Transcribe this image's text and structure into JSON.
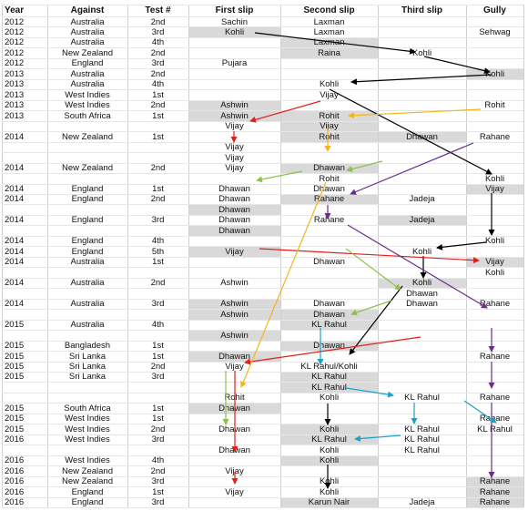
{
  "table": {
    "columns": [
      "Year",
      "Against",
      "Test #",
      "First slip",
      "Second slip",
      "Third slip",
      "Gully"
    ],
    "rows": [
      [
        "2012",
        "Australia",
        "2nd",
        "Sachin",
        "Laxman",
        null,
        null
      ],
      [
        "2012",
        "Australia",
        "3rd",
        "Kohli",
        "Laxman",
        null,
        "Sehwag"
      ],
      [
        "2012",
        "Australia",
        "4th",
        null,
        "Laxman",
        null,
        null
      ],
      [
        "2012",
        "New Zealand",
        "2nd",
        null,
        "Raina",
        "Kohli",
        null
      ],
      [
        "2012",
        "England",
        "3rd",
        "Pujara",
        null,
        null,
        null
      ],
      [
        "2013",
        "Australia",
        "2nd",
        null,
        null,
        null,
        "Kohli"
      ],
      [
        "2013",
        "Australia",
        "4th",
        null,
        "Kohli",
        null,
        null
      ],
      [
        "2013",
        "West Indies",
        "1st",
        null,
        "Vijay",
        null,
        null
      ],
      [
        "2013",
        "West Indies",
        "2nd",
        "Ashwin",
        null,
        null,
        "Rohit"
      ],
      [
        "2013",
        "South Africa",
        "1st",
        "Ashwin",
        "Rohit",
        null,
        null
      ],
      [
        null,
        null,
        null,
        "Vijay",
        "Vijay",
        null,
        null
      ],
      [
        "2014",
        "New Zealand",
        "1st",
        null,
        "Rohit",
        "Dhawan",
        "Rahane"
      ],
      [
        null,
        null,
        null,
        "Vijay",
        null,
        null,
        null
      ],
      [
        null,
        null,
        null,
        "Vijay",
        null,
        null,
        null
      ],
      [
        "2014",
        "New Zealand",
        "2nd",
        "Vijay",
        "Dhawan",
        null,
        null
      ],
      [
        null,
        null,
        null,
        null,
        "Rohit",
        null,
        "Kohli"
      ],
      [
        "2014",
        "England",
        "1st",
        "Dhawan",
        "Dhawan",
        null,
        "Vijay"
      ],
      [
        "2014",
        "England",
        "2nd",
        "Dhawan",
        "Rahane",
        "Jadeja",
        null
      ],
      [
        null,
        null,
        null,
        "Dhawan",
        null,
        null,
        null
      ],
      [
        "2014",
        "England",
        "3rd",
        "Dhawan",
        "Rahane",
        "Jadeja",
        null
      ],
      [
        null,
        null,
        null,
        "Dhawan",
        null,
        null,
        null
      ],
      [
        "2014",
        "England",
        "4th",
        null,
        null,
        null,
        "Kohli"
      ],
      [
        "2014",
        "England",
        "5th",
        "Vijay",
        null,
        "Kohli",
        null
      ],
      [
        "2014",
        "Australia",
        "1st",
        null,
        "Dhawan",
        null,
        "Vijay"
      ],
      [
        null,
        null,
        null,
        null,
        null,
        null,
        "Kohli"
      ],
      [
        "2014",
        "Australia",
        "2nd",
        "Ashwin",
        null,
        "Kohli",
        null
      ],
      [
        null,
        null,
        null,
        null,
        null,
        "Dhawan",
        null
      ],
      [
        "2014",
        "Australia",
        "3rd",
        "Ashwin",
        "Dhawan",
        "Dhawan",
        "Rahane"
      ],
      [
        null,
        null,
        null,
        "Ashwin",
        "Dhawan",
        null,
        null
      ],
      [
        "2015",
        "Australia",
        "4th",
        null,
        "KL Rahul",
        null,
        null
      ],
      [
        null,
        null,
        null,
        "Ashwin",
        null,
        null,
        null
      ],
      [
        "2015",
        "Bangladesh",
        "1st",
        null,
        "Dhawan",
        null,
        null
      ],
      [
        "2015",
        "Sri Lanka",
        "1st",
        "Dhawan",
        null,
        null,
        "Rahane"
      ],
      [
        "2015",
        "Sri Lanka",
        "2nd",
        "Vijay",
        "KL Rahul/Kohli",
        null,
        null
      ],
      [
        "2015",
        "Sri Lanka",
        "3rd",
        null,
        "KL Rahul",
        null,
        null
      ],
      [
        null,
        null,
        null,
        null,
        "KL Rahul",
        null,
        null
      ],
      [
        null,
        null,
        null,
        "Rohit",
        "Kohli",
        "KL Rahul",
        "Rahane"
      ],
      [
        "2015",
        "South Africa",
        "1st",
        "Dhawan",
        null,
        null,
        null
      ],
      [
        "2015",
        "West Indies",
        "1st",
        null,
        null,
        null,
        "Rahane"
      ],
      [
        "2015",
        "West Indies",
        "2nd",
        "Dhawan",
        "Kohli",
        "KL Rahul",
        "KL Rahul"
      ],
      [
        "2016",
        "West Indies",
        "3rd",
        null,
        "KL Rahul",
        "KL Rahul",
        null
      ],
      [
        null,
        null,
        null,
        "Dhawan",
        "Kohli",
        "KL Rahul",
        null
      ],
      [
        "2016",
        "West Indies",
        "4th",
        null,
        "Kohli",
        null,
        null
      ],
      [
        "2016",
        "New Zealand",
        "2nd",
        "Vijay",
        null,
        null,
        null
      ],
      [
        "2016",
        "New Zealand",
        "3rd",
        null,
        "Kohli",
        null,
        "Rahane"
      ],
      [
        "2016",
        "England",
        "1st",
        "Vijay",
        "Kohli",
        null,
        "Rahane"
      ],
      [
        "2016",
        "England",
        "3rd",
        null,
        "Karun Nair",
        "Jadeja",
        "Rahane"
      ]
    ]
  }
}
